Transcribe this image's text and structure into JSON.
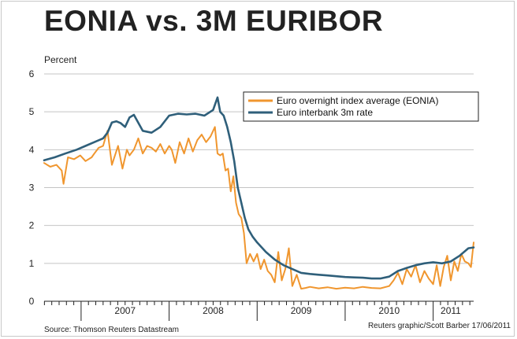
{
  "chart_data": {
    "type": "line",
    "title": "EONIA vs. 3M EURIBOR",
    "ylabel": "Percent",
    "xlabel": "",
    "ylim": [
      0,
      6
    ],
    "yticks": [
      "0",
      "1",
      "2",
      "3",
      "4",
      "5",
      "6"
    ],
    "xlim": [
      2006.58,
      2011.46
    ],
    "xticks": [
      {
        "label": "2007",
        "at": 2007.5
      },
      {
        "label": "2008",
        "at": 2008.5
      },
      {
        "label": "2009",
        "at": 2009.5
      },
      {
        "label": "2010",
        "at": 2010.5
      },
      {
        "label": "2011",
        "at": 2011.2
      }
    ],
    "grid": true,
    "legend_position": "top-right",
    "series": [
      {
        "name": "Euro overnight index average (EONIA)",
        "color": "#f0962e",
        "x": [
          2006.58,
          2006.65,
          2006.72,
          2006.78,
          2006.8,
          2006.85,
          2006.92,
          2006.99,
          2007.05,
          2007.12,
          2007.15,
          2007.2,
          2007.25,
          2007.3,
          2007.35,
          2007.42,
          2007.47,
          2007.52,
          2007.55,
          2007.6,
          2007.65,
          2007.7,
          2007.75,
          2007.8,
          2007.85,
          2007.9,
          2007.95,
          2008.0,
          2008.03,
          2008.07,
          2008.12,
          2008.17,
          2008.22,
          2008.27,
          2008.32,
          2008.37,
          2008.42,
          2008.47,
          2008.52,
          2008.55,
          2008.58,
          2008.61,
          2008.64,
          2008.67,
          2008.7,
          2008.73,
          2008.76,
          2008.79,
          2008.82,
          2008.85,
          2008.88,
          2008.92,
          2008.96,
          2009.0,
          2009.04,
          2009.08,
          2009.12,
          2009.16,
          2009.2,
          2009.24,
          2009.28,
          2009.32,
          2009.36,
          2009.4,
          2009.45,
          2009.5,
          2009.55,
          2009.6,
          2009.7,
          2009.8,
          2009.9,
          2010.0,
          2010.1,
          2010.2,
          2010.3,
          2010.4,
          2010.5,
          2010.55,
          2010.6,
          2010.65,
          2010.7,
          2010.75,
          2010.8,
          2010.85,
          2010.9,
          2010.95,
          2011.0,
          2011.04,
          2011.08,
          2011.12,
          2011.16,
          2011.2,
          2011.24,
          2011.28,
          2011.32,
          2011.36,
          2011.4,
          2011.43,
          2011.46
        ],
        "values": [
          3.65,
          3.55,
          3.6,
          3.45,
          3.1,
          3.8,
          3.75,
          3.85,
          3.7,
          3.8,
          3.9,
          4.05,
          4.1,
          4.5,
          3.6,
          4.1,
          3.5,
          4.0,
          3.85,
          4.0,
          4.3,
          3.9,
          4.1,
          4.05,
          3.95,
          4.15,
          3.9,
          4.1,
          4.0,
          3.65,
          4.2,
          3.9,
          4.3,
          3.95,
          4.25,
          4.4,
          4.2,
          4.35,
          4.6,
          3.9,
          3.85,
          3.9,
          3.45,
          3.5,
          2.9,
          3.3,
          2.6,
          2.3,
          2.2,
          1.8,
          1.0,
          1.25,
          1.05,
          1.25,
          0.85,
          1.1,
          0.8,
          0.7,
          0.5,
          1.3,
          0.55,
          0.85,
          1.4,
          0.4,
          0.7,
          0.33,
          0.35,
          0.38,
          0.34,
          0.37,
          0.33,
          0.36,
          0.34,
          0.38,
          0.35,
          0.34,
          0.4,
          0.55,
          0.75,
          0.45,
          0.85,
          0.65,
          0.95,
          0.5,
          0.8,
          0.6,
          0.45,
          0.95,
          0.4,
          0.9,
          1.2,
          0.55,
          1.05,
          0.8,
          1.25,
          1.05,
          1.0,
          0.9,
          1.55
        ]
      },
      {
        "name": "Euro interbank 3m rate",
        "color": "#2f5f7a",
        "x": [
          2006.58,
          2006.7,
          2006.82,
          2006.95,
          2007.05,
          2007.15,
          2007.25,
          2007.3,
          2007.35,
          2007.4,
          2007.45,
          2007.5,
          2007.55,
          2007.6,
          2007.7,
          2007.8,
          2007.9,
          2008.0,
          2008.1,
          2008.2,
          2008.3,
          2008.4,
          2008.5,
          2008.55,
          2008.58,
          2008.62,
          2008.66,
          2008.7,
          2008.74,
          2008.78,
          2008.82,
          2008.86,
          2008.9,
          2008.95,
          2009.0,
          2009.1,
          2009.2,
          2009.3,
          2009.4,
          2009.5,
          2009.6,
          2009.7,
          2009.8,
          2009.9,
          2010.0,
          2010.1,
          2010.2,
          2010.3,
          2010.4,
          2010.5,
          2010.6,
          2010.7,
          2010.8,
          2010.9,
          2011.0,
          2011.1,
          2011.2,
          2011.3,
          2011.4,
          2011.46
        ],
        "values": [
          3.72,
          3.8,
          3.9,
          4.0,
          4.1,
          4.2,
          4.3,
          4.45,
          4.72,
          4.75,
          4.7,
          4.6,
          4.85,
          4.92,
          4.5,
          4.45,
          4.6,
          4.9,
          4.95,
          4.93,
          4.95,
          4.9,
          5.05,
          5.38,
          5.0,
          4.9,
          4.6,
          4.2,
          3.7,
          3.0,
          2.6,
          2.2,
          1.9,
          1.7,
          1.55,
          1.3,
          1.1,
          0.95,
          0.85,
          0.75,
          0.72,
          0.7,
          0.68,
          0.66,
          0.64,
          0.63,
          0.62,
          0.6,
          0.6,
          0.65,
          0.8,
          0.88,
          0.95,
          1.0,
          1.03,
          1.0,
          1.05,
          1.2,
          1.4,
          1.42
        ]
      }
    ]
  },
  "footer": {
    "source": "Source: Thomson Reuters Datastream",
    "credit": "Reuters graphic/Scott Barber 17/06/2011"
  }
}
